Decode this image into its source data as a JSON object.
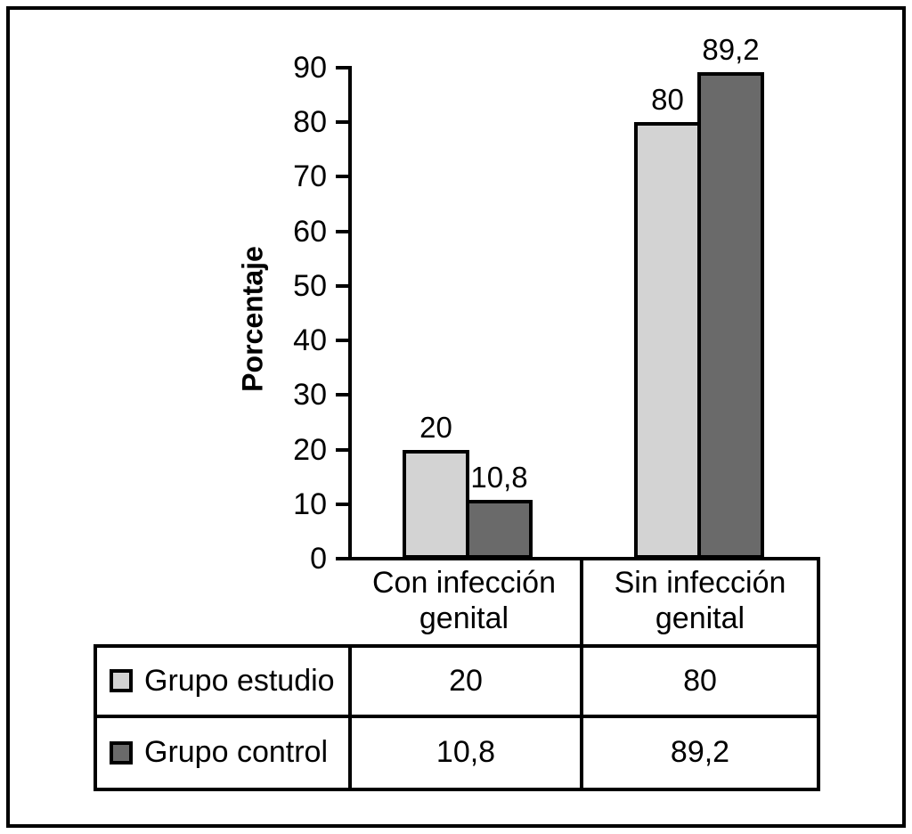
{
  "chart_data": {
    "type": "bar",
    "title": "",
    "ylabel": "Porcentaje",
    "xlabel": "",
    "ylim": [
      0,
      90
    ],
    "yticks": [
      90,
      80,
      70,
      60,
      50,
      40,
      30,
      20,
      10,
      0
    ],
    "grid": false,
    "legend_position": "table-below",
    "categories": [
      "Con infección genital",
      "Sin infección genital"
    ],
    "series": [
      {
        "name": "Grupo estudio",
        "color": "#d3d3d3",
        "values": [
          20,
          80
        ],
        "labels": [
          "20",
          "80"
        ]
      },
      {
        "name": "Grupo control",
        "color": "#6a6a6a",
        "values": [
          10.8,
          89.2
        ],
        "labels": [
          "10,8",
          "89,2"
        ]
      }
    ]
  },
  "table": {
    "rows": [
      {
        "legend": "Grupo estudio",
        "swatch_color": "#d3d3d3",
        "values": [
          "20",
          "80"
        ]
      },
      {
        "legend": "Grupo control",
        "swatch_color": "#6a6a6a",
        "values": [
          "10,8",
          "89,2"
        ]
      }
    ]
  }
}
